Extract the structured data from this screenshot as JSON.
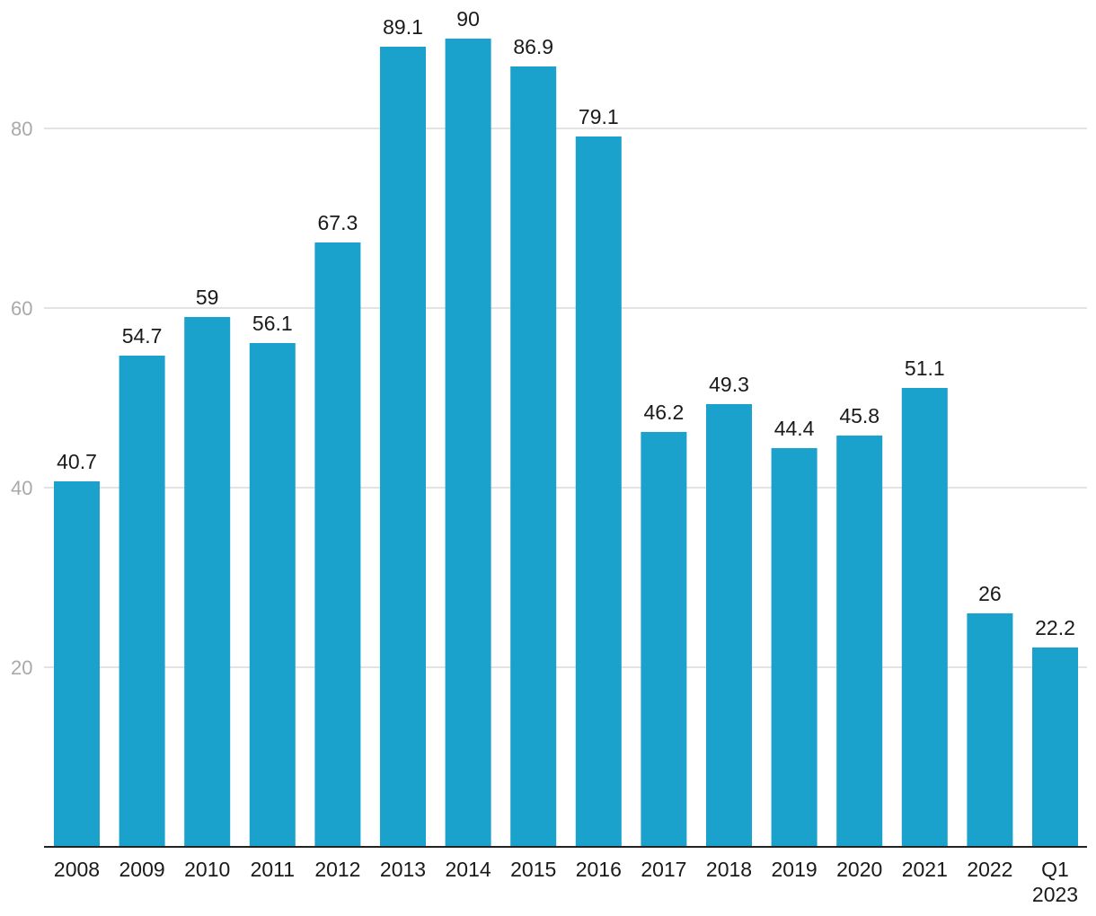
{
  "chart_data": {
    "type": "bar",
    "title": "",
    "xlabel": "",
    "ylabel": "",
    "categories": [
      [
        "2008"
      ],
      [
        "2009"
      ],
      [
        "2010"
      ],
      [
        "2011"
      ],
      [
        "2012"
      ],
      [
        "2013"
      ],
      [
        "2014"
      ],
      [
        "2015"
      ],
      [
        "2016"
      ],
      [
        "2017"
      ],
      [
        "2018"
      ],
      [
        "2019"
      ],
      [
        "2020"
      ],
      [
        "2021"
      ],
      [
        "2022"
      ],
      [
        "Q1",
        "2023"
      ]
    ],
    "values": [
      40.7,
      54.7,
      59,
      56.1,
      67.3,
      89.1,
      90,
      86.9,
      79.1,
      46.2,
      49.3,
      44.4,
      45.8,
      51.1,
      26,
      22.2
    ],
    "value_labels": [
      "40.7",
      "54.7",
      "59",
      "56.1",
      "67.3",
      "89.1",
      "90",
      "86.9",
      "79.1",
      "46.2",
      "49.3",
      "44.4",
      "45.8",
      "51.1",
      "26",
      "22.2"
    ],
    "ylim": [
      0,
      90
    ],
    "yticks": [
      20,
      40,
      60,
      80
    ],
    "ytick_labels": [
      "20",
      "40",
      "60",
      "80"
    ],
    "grid": true,
    "legend": "none",
    "bar_color": "#1aa1cc",
    "grid_color": "#e3e3e3",
    "axis_color": "#222222",
    "ytick_color": "#a9a9a9"
  }
}
